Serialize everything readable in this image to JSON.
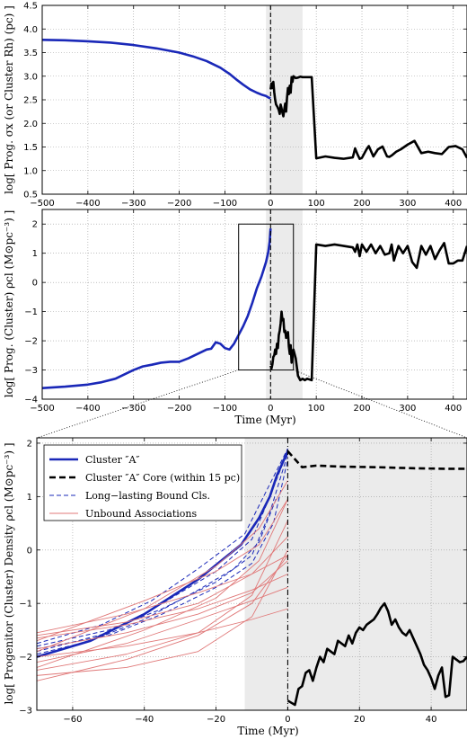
{
  "chart_data": [
    {
      "type": "line",
      "panel": "top",
      "ylabel": "log[ Prog. σx (or Cluster Rh) (pc) ]",
      "xlabel": "",
      "xlim": [
        -500,
        430
      ],
      "ylim": [
        0.5,
        4.5
      ],
      "xticks": [
        -500,
        -400,
        -300,
        -200,
        -100,
        0,
        100,
        200,
        300,
        400
      ],
      "yticks": [
        0.5,
        1.0,
        1.5,
        2.0,
        2.5,
        3.0,
        3.5,
        4.0,
        4.5
      ],
      "xtick_labels": [
        "−500",
        "−400",
        "−300",
        "−200",
        "−100",
        "0",
        "100",
        "200",
        "300",
        "400"
      ],
      "ytick_labels": [
        "0.5",
        "1.0",
        "1.5",
        "2.0",
        "2.5",
        "3.0",
        "3.5",
        "4.0",
        "4.5"
      ],
      "grid": true,
      "shaded_band": [
        -10,
        70
      ],
      "vline": 0,
      "series": [
        {
          "color": "#1a28b8",
          "style": "solid",
          "x": [
            -500,
            -450,
            -400,
            -350,
            -300,
            -250,
            -200,
            -170,
            -140,
            -110,
            -90,
            -75,
            -60,
            -45,
            -30,
            -20,
            -10,
            -5,
            0
          ],
          "y": [
            3.77,
            3.76,
            3.74,
            3.71,
            3.66,
            3.59,
            3.5,
            3.42,
            3.32,
            3.18,
            3.05,
            2.93,
            2.82,
            2.72,
            2.65,
            2.61,
            2.58,
            2.55,
            2.53
          ]
        },
        {
          "color": "#000000",
          "style": "solid",
          "x": [
            0,
            2,
            4,
            6,
            8,
            10,
            12,
            15,
            18,
            20,
            22,
            24,
            26,
            28,
            30,
            32,
            34,
            36,
            38,
            40,
            42,
            44,
            46,
            48,
            50,
            55,
            60,
            65,
            70,
            75,
            80,
            90,
            100,
            120,
            140,
            160,
            180,
            185,
            190,
            195,
            200,
            210,
            215,
            225,
            235,
            245,
            255,
            260,
            265,
            275,
            285,
            300,
            315,
            330,
            345,
            360,
            375,
            390,
            405,
            420,
            430
          ],
          "y": [
            2.72,
            2.85,
            2.75,
            2.88,
            2.66,
            2.5,
            2.4,
            2.35,
            2.28,
            2.2,
            2.4,
            2.32,
            2.22,
            2.15,
            2.3,
            2.42,
            2.25,
            2.55,
            2.75,
            2.62,
            2.8,
            2.65,
            2.98,
            2.88,
            3.0,
            2.96,
            2.97,
            2.99,
            2.98,
            2.98,
            2.98,
            2.98,
            1.26,
            1.3,
            1.27,
            1.25,
            1.28,
            1.47,
            1.35,
            1.25,
            1.27,
            1.45,
            1.52,
            1.3,
            1.45,
            1.51,
            1.3,
            1.29,
            1.32,
            1.4,
            1.45,
            1.55,
            1.63,
            1.37,
            1.4,
            1.37,
            1.35,
            1.5,
            1.52,
            1.45,
            1.27
          ]
        }
      ]
    },
    {
      "type": "line",
      "panel": "middle",
      "ylabel": "log[ Prog. (Cluster) ρcl (M⊙pc⁻³) ]",
      "xlabel": "Time (Myr)",
      "xlim": [
        -500,
        430
      ],
      "ylim": [
        -4,
        2.5
      ],
      "xticks": [
        -500,
        -400,
        -300,
        -200,
        -100,
        0,
        100,
        200,
        300,
        400
      ],
      "yticks": [
        -4,
        -3,
        -2,
        -1,
        0,
        1,
        2
      ],
      "xtick_labels": [
        "−500",
        "−400",
        "−300",
        "−200",
        "−100",
        "0",
        "100",
        "200",
        "300",
        "400"
      ],
      "ytick_labels": [
        "−4",
        "−3",
        "−2",
        "−1",
        "0",
        "1",
        "2"
      ],
      "grid": true,
      "shaded_band": [
        -10,
        70
      ],
      "vline": 0,
      "inset_box": {
        "x": [
          -70,
          50
        ],
        "y": [
          -3,
          2
        ]
      },
      "series": [
        {
          "color": "#1a28b8",
          "style": "solid",
          "x": [
            -500,
            -450,
            -400,
            -370,
            -340,
            -320,
            -300,
            -280,
            -260,
            -240,
            -220,
            -200,
            -180,
            -160,
            -140,
            -130,
            -120,
            -110,
            -100,
            -90,
            -80,
            -70,
            -60,
            -50,
            -40,
            -30,
            -20,
            -15,
            -10,
            -5,
            -2,
            0
          ],
          "y": [
            -3.62,
            -3.57,
            -3.5,
            -3.42,
            -3.3,
            -3.15,
            -3.0,
            -2.88,
            -2.82,
            -2.75,
            -2.72,
            -2.72,
            -2.6,
            -2.45,
            -2.3,
            -2.27,
            -2.05,
            -2.1,
            -2.25,
            -2.3,
            -2.1,
            -1.8,
            -1.5,
            -1.15,
            -0.7,
            -0.2,
            0.2,
            0.45,
            0.7,
            1.05,
            1.4,
            1.85
          ]
        },
        {
          "color": "#000000",
          "style": "solid",
          "x": [
            0,
            2,
            4,
            6,
            8,
            10,
            12,
            14,
            16,
            18,
            20,
            22,
            24,
            26,
            28,
            30,
            32,
            34,
            36,
            38,
            40,
            42,
            44,
            46,
            48,
            50,
            55,
            60,
            65,
            70,
            75,
            80,
            90,
            100,
            120,
            140,
            160,
            180,
            185,
            190,
            195,
            200,
            210,
            220,
            230,
            240,
            250,
            260,
            265,
            270,
            280,
            290,
            300,
            310,
            320,
            330,
            340,
            350,
            360,
            370,
            380,
            390,
            400,
            410,
            420,
            430
          ],
          "y": [
            -2.85,
            -2.95,
            -2.8,
            -2.55,
            -2.5,
            -2.3,
            -2.45,
            -2.1,
            -2.25,
            -1.8,
            -1.65,
            -1.4,
            -1.0,
            -1.3,
            -1.25,
            -1.7,
            -1.65,
            -1.9,
            -1.85,
            -1.7,
            -2.2,
            -2.45,
            -2.15,
            -2.75,
            -2.4,
            -2.3,
            -2.6,
            -3.2,
            -3.35,
            -3.3,
            -3.35,
            -3.3,
            -3.35,
            1.3,
            1.25,
            1.3,
            1.25,
            1.2,
            1.05,
            1.3,
            0.9,
            1.3,
            1.05,
            1.3,
            1.0,
            1.25,
            0.95,
            1.0,
            1.3,
            0.75,
            1.25,
            1.0,
            1.25,
            0.7,
            0.5,
            1.25,
            0.95,
            1.25,
            0.8,
            1.1,
            1.35,
            0.65,
            0.65,
            0.75,
            0.75,
            1.25
          ]
        }
      ]
    },
    {
      "type": "line",
      "panel": "bottom",
      "ylabel": "log[ Progenitor (Cluster) Density ρcl (M⊙pc⁻³) ]",
      "xlabel": "Time (Myr)",
      "xlim": [
        -70,
        50
      ],
      "ylim": [
        -3,
        2.1
      ],
      "xticks": [
        -60,
        -40,
        -20,
        0,
        20,
        40
      ],
      "yticks": [
        -3,
        -2,
        -1,
        0,
        1,
        2
      ],
      "xtick_labels": [
        "−60",
        "−40",
        "−20",
        "0",
        "20",
        "40"
      ],
      "ytick_labels": [
        "−3",
        "−2",
        "−1",
        "0",
        "1",
        "2"
      ],
      "grid": true,
      "shaded_band": [
        -12,
        50
      ],
      "vline": 0,
      "legend": {
        "placement": "top-left",
        "entries": [
          {
            "label": "Cluster ″A″",
            "color": "#1a28b8",
            "style": "solid-thick"
          },
          {
            "label": "Cluster ″A″ Core (within 15 pc)",
            "color": "#000000",
            "style": "dashed-thick"
          },
          {
            "label": "Long−lasting Bound Cls.",
            "color": "#1a28b8",
            "style": "dashed-thin"
          },
          {
            "label": "Unbound Associations",
            "color": "#e07878",
            "style": "solid-thin"
          }
        ]
      },
      "series": [
        {
          "name": "Cluster ″A″",
          "color": "#1a28b8",
          "style": "solid-thick",
          "x": [
            -70,
            -55,
            -40,
            -25,
            -13,
            -8,
            -5,
            -3,
            0
          ],
          "y": [
            -2.0,
            -1.7,
            -1.2,
            -0.55,
            0.1,
            0.6,
            1.0,
            1.4,
            1.85
          ]
        },
        {
          "name": "Cluster ″A″ Core (within 15 pc)",
          "color": "#000000",
          "style": "dashed-thick",
          "x": [
            0,
            2,
            4,
            8,
            15,
            25,
            35,
            45,
            50
          ],
          "y": [
            1.85,
            1.7,
            1.55,
            1.58,
            1.56,
            1.55,
            1.53,
            1.52,
            1.52
          ]
        },
        {
          "color": "#000000",
          "style": "solid-thick",
          "x": [
            0,
            2,
            3,
            4,
            5,
            6,
            7,
            8,
            9,
            10,
            11,
            12,
            13,
            14,
            15,
            16,
            17,
            18,
            19,
            20,
            21,
            22,
            23,
            24,
            25,
            26,
            27,
            28,
            29,
            30,
            31,
            32,
            33,
            34,
            35,
            36,
            37,
            38,
            39,
            40,
            41,
            42,
            43,
            44,
            45,
            46,
            47,
            48,
            49,
            50
          ],
          "y": [
            -2.82,
            -2.9,
            -2.6,
            -2.55,
            -2.3,
            -2.25,
            -2.45,
            -2.2,
            -2.0,
            -2.1,
            -1.85,
            -1.9,
            -1.95,
            -1.7,
            -1.75,
            -1.8,
            -1.6,
            -1.75,
            -1.55,
            -1.45,
            -1.5,
            -1.4,
            -1.35,
            -1.3,
            -1.2,
            -1.08,
            -1.0,
            -1.15,
            -1.4,
            -1.3,
            -1.45,
            -1.55,
            -1.6,
            -1.5,
            -1.65,
            -1.8,
            -1.95,
            -2.15,
            -2.25,
            -2.4,
            -2.6,
            -2.35,
            -2.2,
            -2.75,
            -2.72,
            -2.0,
            -2.05,
            -2.1,
            -2.08,
            -2.0
          ]
        },
        {
          "color": "#1a28b8",
          "style": "dashed-thin",
          "x": [
            -70,
            -50,
            -35,
            -20,
            -10,
            -5,
            0
          ],
          "y": [
            -1.8,
            -1.5,
            -1.1,
            -0.6,
            -0.1,
            0.7,
            1.8
          ]
        },
        {
          "color": "#1a28b8",
          "style": "dashed-thin",
          "x": [
            -70,
            -50,
            -35,
            -20,
            -10,
            -5,
            0
          ],
          "y": [
            -1.9,
            -1.55,
            -1.0,
            -0.4,
            0.2,
            1.0,
            1.85
          ]
        },
        {
          "color": "#1a28b8",
          "style": "dashed-thin",
          "x": [
            -70,
            -50,
            -35,
            -20,
            -10,
            -4,
            0
          ],
          "y": [
            -1.85,
            -1.6,
            -1.2,
            -0.7,
            -0.25,
            0.5,
            1.7
          ]
        },
        {
          "color": "#1a28b8",
          "style": "dashed-thin",
          "x": [
            -70,
            -52,
            -38,
            -25,
            -12,
            -6,
            0
          ],
          "y": [
            -1.75,
            -1.4,
            -0.95,
            -0.35,
            0.3,
            1.1,
            1.9
          ]
        },
        {
          "color": "#1a28b8",
          "style": "dashed-thin",
          "x": [
            -70,
            -55,
            -40,
            -25,
            -15,
            -8,
            -3
          ],
          "y": [
            -1.95,
            -1.7,
            -1.3,
            -0.75,
            -0.35,
            0.15,
            1.0
          ]
        },
        {
          "color": "#e07878",
          "style": "solid-thin",
          "x": [
            -70,
            -45,
            -25,
            -10,
            0
          ],
          "y": [
            -1.55,
            -1.2,
            -0.8,
            -0.45,
            -0.1
          ]
        },
        {
          "color": "#e07878",
          "style": "solid-thin",
          "x": [
            -70,
            -45,
            -25,
            -10,
            0
          ],
          "y": [
            -1.6,
            -1.35,
            -1.0,
            -0.45,
            0.25
          ]
        },
        {
          "color": "#e07878",
          "style": "solid-thin",
          "x": [
            -70,
            -45,
            -25,
            -10,
            0
          ],
          "y": [
            -1.65,
            -1.4,
            -1.1,
            -0.75,
            -0.45
          ]
        },
        {
          "color": "#e07878",
          "style": "solid-thin",
          "x": [
            -70,
            -45,
            -25,
            -10,
            0
          ],
          "y": [
            -1.85,
            -1.55,
            -1.2,
            -0.8,
            -0.2
          ]
        },
        {
          "color": "#e07878",
          "style": "solid-thin",
          "x": [
            -70,
            -45,
            -25,
            -10,
            0
          ],
          "y": [
            -2.0,
            -1.8,
            -1.55,
            -1.3,
            -1.1
          ]
        },
        {
          "color": "#e07878",
          "style": "solid-thin",
          "x": [
            -70,
            -45,
            -25,
            -10,
            0
          ],
          "y": [
            -2.1,
            -1.75,
            -1.3,
            -0.95,
            -0.7
          ]
        },
        {
          "color": "#e07878",
          "style": "solid-thin",
          "x": [
            -70,
            -45,
            -25,
            -10,
            0
          ],
          "y": [
            -2.25,
            -1.95,
            -1.55,
            -0.85,
            0.55
          ]
        },
        {
          "color": "#e07878",
          "style": "solid-thin",
          "x": [
            -70,
            -45,
            -25,
            -10,
            0
          ],
          "y": [
            -2.35,
            -2.2,
            -1.9,
            -1.25,
            0.0
          ]
        },
        {
          "color": "#e07878",
          "style": "solid-thin",
          "x": [
            -70,
            -45,
            -25,
            -10,
            0
          ],
          "y": [
            -2.45,
            -2.05,
            -1.6,
            -1.0,
            -0.1
          ]
        },
        {
          "color": "#e07878",
          "style": "solid-thin",
          "x": [
            -70,
            -40,
            -20,
            -8,
            0
          ],
          "y": [
            -1.7,
            -0.95,
            -0.4,
            0.1,
            0.95
          ]
        },
        {
          "color": "#e07878",
          "style": "solid-thin",
          "x": [
            -70,
            -40,
            -20,
            -8,
            0
          ],
          "y": [
            -1.9,
            -1.1,
            -0.3,
            0.4,
            1.3
          ]
        },
        {
          "color": "#e07878",
          "style": "solid-thin",
          "x": [
            -70,
            -40,
            -20,
            -8,
            0
          ],
          "y": [
            -2.2,
            -1.5,
            -0.9,
            -0.2,
            0.95
          ]
        }
      ]
    }
  ]
}
